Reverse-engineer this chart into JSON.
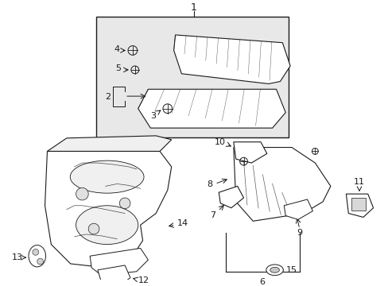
{
  "bg_color": "#ffffff",
  "line_color": "#1a1a1a",
  "gray_fill": "#e8e8e8",
  "fig_width": 4.89,
  "fig_height": 3.6,
  "dpi": 100
}
